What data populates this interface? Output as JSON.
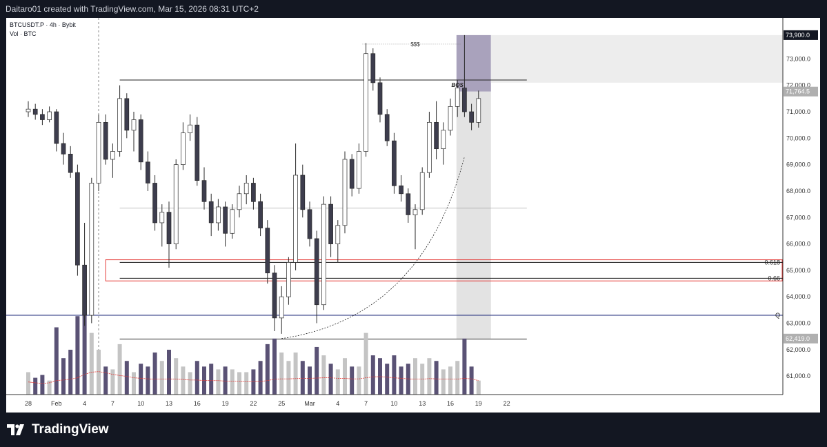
{
  "header": {
    "caption": "Daitaro01 created with TradingView.com, Mar 15, 2026 08:31 UTC+2"
  },
  "footer": {
    "brand": "TradingView"
  },
  "chart_data": {
    "type": "candlestick",
    "symbol_line": "BTCUSDT.P · 4h · Bybit",
    "volume_line": "Vol · BTC",
    "y_ticks": [
      "61,000.0",
      "62,000.0",
      "63,000.0",
      "64,000.0",
      "65,000.0",
      "66,000.0",
      "67,000.0",
      "68,000.0",
      "69,000.0",
      "70,000.0",
      "71,000.0",
      "72,000.0",
      "73,000.0"
    ],
    "y_tick_values": [
      61000,
      62000,
      63000,
      64000,
      65000,
      66000,
      67000,
      68000,
      69000,
      70000,
      71000,
      72000,
      73000
    ],
    "x_ticks": [
      "28",
      "Feb",
      "4",
      "7",
      "10",
      "13",
      "16",
      "19",
      "22",
      "25",
      "Mar",
      "4",
      "7",
      "10",
      "13",
      "16",
      "19",
      "22"
    ],
    "x_tick_index": [
      0,
      4,
      8,
      12,
      16,
      20,
      24,
      28,
      32,
      36,
      40,
      44,
      48,
      52,
      56,
      60,
      64,
      68
    ],
    "price_labels": [
      {
        "text": "73,900.0",
        "value": 73900,
        "style": "dark"
      },
      {
        "text": "71,764.5",
        "value": 71764.5,
        "style": "grey"
      },
      {
        "text": "62,419.0",
        "value": 62419,
        "style": "grey"
      }
    ],
    "annotations": {
      "sss": "$$$",
      "bos": "BOS",
      "fib_618": "0.618",
      "fib_66": "0.66",
      "q_level": "Q"
    },
    "levels": {
      "range_high": 72200,
      "range_mid": 67350,
      "range_low": 62400,
      "q_line": 63300,
      "fib_618": 65300,
      "fib_66": 64700,
      "sss_high": 73560
    },
    "colors": {
      "bull": "#ffffff",
      "bear": "#3d3d4d",
      "wick": "#2a2a2a",
      "vol_bull": "#c4c4c4",
      "vol_bear": "#5a5275",
      "q_line": "#1e2a78",
      "fib": "#e53935",
      "box": "#9a92b0",
      "ma": "#e53935"
    },
    "candles": [
      {
        "o": 71000,
        "h": 71400,
        "l": 70800,
        "c": 71100,
        "v": 0.8
      },
      {
        "o": 71100,
        "h": 71300,
        "l": 70700,
        "c": 70900,
        "v": 0.6
      },
      {
        "o": 70900,
        "h": 71100,
        "l": 70500,
        "c": 70700,
        "v": 0.7
      },
      {
        "o": 70700,
        "h": 71200,
        "l": 70600,
        "c": 71000,
        "v": 0.5
      },
      {
        "o": 71000,
        "h": 71100,
        "l": 69500,
        "c": 69800,
        "v": 2.4
      },
      {
        "o": 69800,
        "h": 70200,
        "l": 69000,
        "c": 69400,
        "v": 1.3
      },
      {
        "o": 69400,
        "h": 69700,
        "l": 68500,
        "c": 68700,
        "v": 1.6
      },
      {
        "o": 68700,
        "h": 69000,
        "l": 64800,
        "c": 65200,
        "v": 2.8
      },
      {
        "o": 65200,
        "h": 66800,
        "l": 62900,
        "c": 63300,
        "v": 3.0
      },
      {
        "o": 63300,
        "h": 68500,
        "l": 63000,
        "c": 68300,
        "v": 2.2
      },
      {
        "o": 68300,
        "h": 70900,
        "l": 68000,
        "c": 70600,
        "v": 1.6
      },
      {
        "o": 70600,
        "h": 70900,
        "l": 69000,
        "c": 69200,
        "v": 1.0
      },
      {
        "o": 69200,
        "h": 69800,
        "l": 68500,
        "c": 69500,
        "v": 0.9
      },
      {
        "o": 69500,
        "h": 72000,
        "l": 69300,
        "c": 71500,
        "v": 1.8
      },
      {
        "o": 71500,
        "h": 71700,
        "l": 70000,
        "c": 70300,
        "v": 1.2
      },
      {
        "o": 70300,
        "h": 71000,
        "l": 69500,
        "c": 70700,
        "v": 0.8
      },
      {
        "o": 70700,
        "h": 70900,
        "l": 68800,
        "c": 69100,
        "v": 1.1
      },
      {
        "o": 69100,
        "h": 69500,
        "l": 68000,
        "c": 68300,
        "v": 1.0
      },
      {
        "o": 68300,
        "h": 68600,
        "l": 66500,
        "c": 66800,
        "v": 1.5
      },
      {
        "o": 66800,
        "h": 67500,
        "l": 65900,
        "c": 67200,
        "v": 1.2
      },
      {
        "o": 67200,
        "h": 67600,
        "l": 65100,
        "c": 66000,
        "v": 1.6
      },
      {
        "o": 66000,
        "h": 69200,
        "l": 65800,
        "c": 69000,
        "v": 1.3
      },
      {
        "o": 69000,
        "h": 70600,
        "l": 68800,
        "c": 70200,
        "v": 1.0
      },
      {
        "o": 70200,
        "h": 70900,
        "l": 69900,
        "c": 70500,
        "v": 0.8
      },
      {
        "o": 70500,
        "h": 70800,
        "l": 68200,
        "c": 68400,
        "v": 1.2
      },
      {
        "o": 68400,
        "h": 68900,
        "l": 67300,
        "c": 67600,
        "v": 1.0
      },
      {
        "o": 67600,
        "h": 67900,
        "l": 66300,
        "c": 66800,
        "v": 1.1
      },
      {
        "o": 66800,
        "h": 67700,
        "l": 66500,
        "c": 67400,
        "v": 0.9
      },
      {
        "o": 67400,
        "h": 67600,
        "l": 65900,
        "c": 66400,
        "v": 1.0
      },
      {
        "o": 66400,
        "h": 67500,
        "l": 66200,
        "c": 67300,
        "v": 0.9
      },
      {
        "o": 67300,
        "h": 68200,
        "l": 67000,
        "c": 67900,
        "v": 0.8
      },
      {
        "o": 67900,
        "h": 68600,
        "l": 67500,
        "c": 68300,
        "v": 0.8
      },
      {
        "o": 68300,
        "h": 68500,
        "l": 67300,
        "c": 67600,
        "v": 0.9
      },
      {
        "o": 67600,
        "h": 67900,
        "l": 66300,
        "c": 66600,
        "v": 1.2
      },
      {
        "o": 66600,
        "h": 66900,
        "l": 64500,
        "c": 64900,
        "v": 1.8
      },
      {
        "o": 64900,
        "h": 65200,
        "l": 62700,
        "c": 63200,
        "v": 2.0
      },
      {
        "o": 63200,
        "h": 64400,
        "l": 62600,
        "c": 64000,
        "v": 1.5
      },
      {
        "o": 64000,
        "h": 65500,
        "l": 63700,
        "c": 65300,
        "v": 1.2
      },
      {
        "o": 65300,
        "h": 69800,
        "l": 65000,
        "c": 68600,
        "v": 1.5
      },
      {
        "o": 68600,
        "h": 69000,
        "l": 67000,
        "c": 67300,
        "v": 1.2
      },
      {
        "o": 67300,
        "h": 67600,
        "l": 65900,
        "c": 66200,
        "v": 1.0
      },
      {
        "o": 66200,
        "h": 66500,
        "l": 63000,
        "c": 63700,
        "v": 1.7
      },
      {
        "o": 63700,
        "h": 67800,
        "l": 63500,
        "c": 67500,
        "v": 1.4
      },
      {
        "o": 67500,
        "h": 67800,
        "l": 65500,
        "c": 66000,
        "v": 1.1
      },
      {
        "o": 66000,
        "h": 66900,
        "l": 65300,
        "c": 66700,
        "v": 0.9
      },
      {
        "o": 66700,
        "h": 69500,
        "l": 66400,
        "c": 69200,
        "v": 1.3
      },
      {
        "o": 69200,
        "h": 69400,
        "l": 67800,
        "c": 68100,
        "v": 1.0
      },
      {
        "o": 68100,
        "h": 69800,
        "l": 67900,
        "c": 69500,
        "v": 1.0
      },
      {
        "o": 69500,
        "h": 73600,
        "l": 69300,
        "c": 73200,
        "v": 2.2
      },
      {
        "o": 73200,
        "h": 73400,
        "l": 71800,
        "c": 72100,
        "v": 1.4
      },
      {
        "o": 72100,
        "h": 72300,
        "l": 70600,
        "c": 70900,
        "v": 1.3
      },
      {
        "o": 70900,
        "h": 71100,
        "l": 69700,
        "c": 69900,
        "v": 1.1
      },
      {
        "o": 69900,
        "h": 70200,
        "l": 67900,
        "c": 68200,
        "v": 1.4
      },
      {
        "o": 68200,
        "h": 68600,
        "l": 67600,
        "c": 67900,
        "v": 1.0
      },
      {
        "o": 67900,
        "h": 68100,
        "l": 66800,
        "c": 67100,
        "v": 1.1
      },
      {
        "o": 67100,
        "h": 67500,
        "l": 65800,
        "c": 67300,
        "v": 1.3
      },
      {
        "o": 67300,
        "h": 68900,
        "l": 67100,
        "c": 68700,
        "v": 1.1
      },
      {
        "o": 68700,
        "h": 71000,
        "l": 68500,
        "c": 70600,
        "v": 1.3
      },
      {
        "o": 70600,
        "h": 71400,
        "l": 69200,
        "c": 69600,
        "v": 1.2
      },
      {
        "o": 69600,
        "h": 70600,
        "l": 69000,
        "c": 70300,
        "v": 0.9
      },
      {
        "o": 70300,
        "h": 71500,
        "l": 70100,
        "c": 71200,
        "v": 1.0
      },
      {
        "o": 71200,
        "h": 72200,
        "l": 70800,
        "c": 71900,
        "v": 1.2
      },
      {
        "o": 71900,
        "h": 73900,
        "l": 70800,
        "c": 71000,
        "v": 2.0
      },
      {
        "o": 71000,
        "h": 71300,
        "l": 70300,
        "c": 70600,
        "v": 1.0
      },
      {
        "o": 70600,
        "h": 71800,
        "l": 70400,
        "c": 71500,
        "v": 0.5
      }
    ],
    "volume_ma": [
      0.45,
      0.42,
      0.4,
      0.42,
      0.5,
      0.52,
      0.55,
      0.6,
      0.72,
      0.8,
      0.82,
      0.78,
      0.72,
      0.68,
      0.65,
      0.6,
      0.58,
      0.56,
      0.55,
      0.55,
      0.56,
      0.55,
      0.54,
      0.52,
      0.52,
      0.5,
      0.5,
      0.5,
      0.48,
      0.48,
      0.47,
      0.46,
      0.46,
      0.47,
      0.5,
      0.55,
      0.56,
      0.56,
      0.57,
      0.58,
      0.58,
      0.59,
      0.6,
      0.6,
      0.58,
      0.58,
      0.56,
      0.56,
      0.6,
      0.63,
      0.64,
      0.62,
      0.6,
      0.58,
      0.56,
      0.55,
      0.55,
      0.57,
      0.56,
      0.55,
      0.55,
      0.55,
      0.58,
      0.56,
      0.5
    ]
  }
}
